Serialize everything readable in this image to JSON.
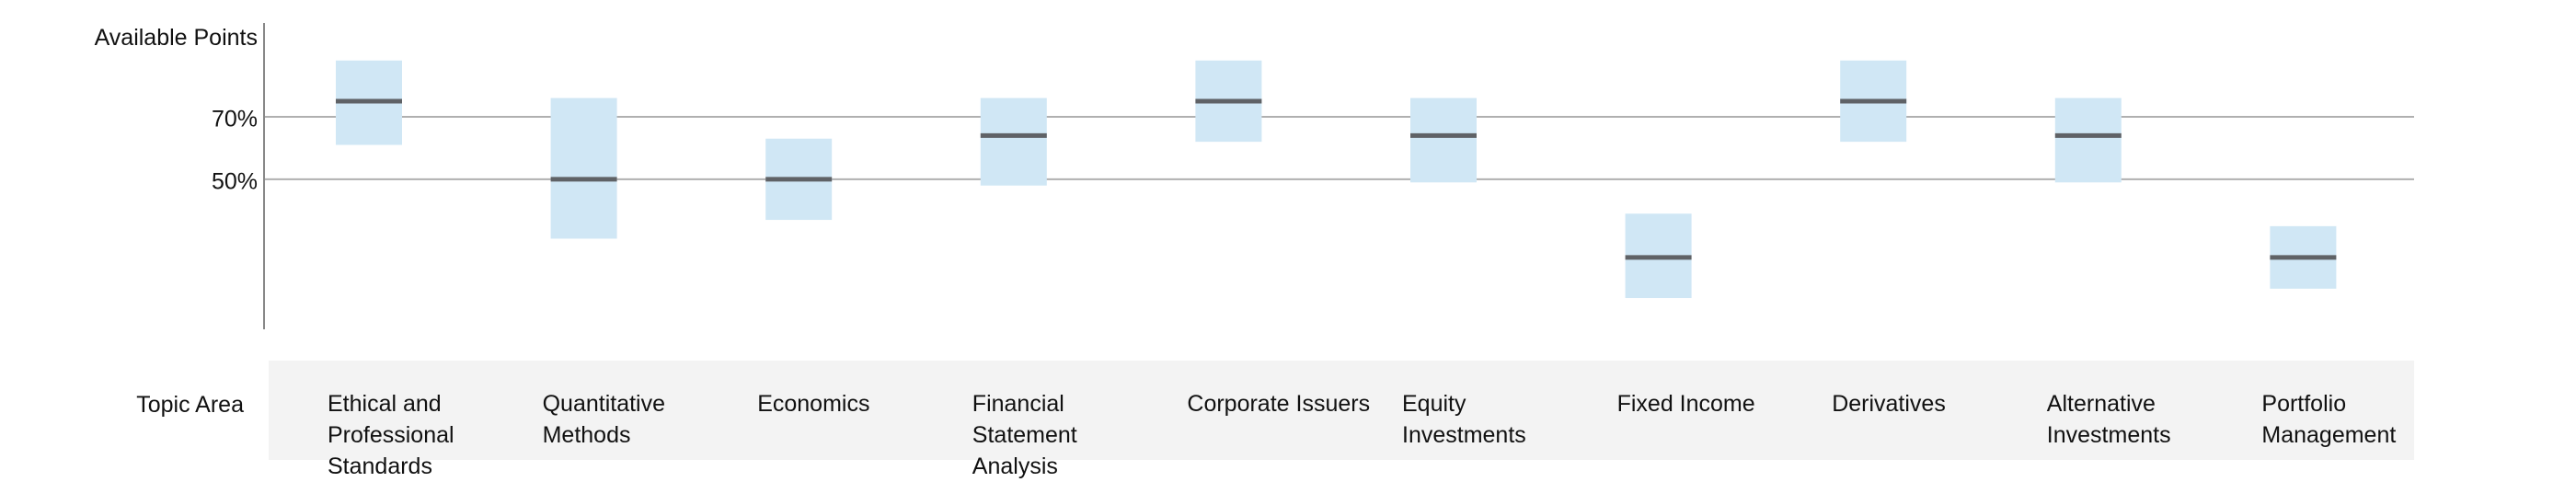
{
  "chart_data": {
    "type": "box",
    "y_axis_title": "Available Points",
    "y_ticks": [
      {
        "value": 70,
        "label": "70%"
      },
      {
        "value": 50,
        "label": "50%"
      }
    ],
    "ylim": [
      2,
      100
    ],
    "grid": "horizontal lines at tick values",
    "x_axis_title": "Topic Area",
    "categories": [
      "Ethical and Professional Standards",
      "Quantitative Methods",
      "Economics",
      "Financial Statement Analysis",
      "Corporate Issuers",
      "Equity Investments",
      "Fixed Income",
      "Derivatives",
      "Alternative Investments",
      "Portfolio Management"
    ],
    "ranges": [
      {
        "low": 61,
        "mid": 75,
        "high": 88
      },
      {
        "low": 31,
        "mid": 50,
        "high": 76
      },
      {
        "low": 37,
        "mid": 50,
        "high": 63
      },
      {
        "low": 48,
        "mid": 64,
        "high": 76
      },
      {
        "low": 62,
        "mid": 75,
        "high": 88
      },
      {
        "low": 49,
        "mid": 64,
        "high": 76
      },
      {
        "low": 12,
        "mid": 25,
        "high": 39
      },
      {
        "low": 62,
        "mid": 75,
        "high": 88
      },
      {
        "low": 49,
        "mid": 64,
        "high": 76
      },
      {
        "low": 15,
        "mid": 25,
        "high": 35
      }
    ],
    "colors": {
      "box": "#d0e7f5",
      "median": "#5f6266",
      "grid": "#b0b0b0",
      "axis": "#888888",
      "band": "#f3f3f3"
    }
  }
}
